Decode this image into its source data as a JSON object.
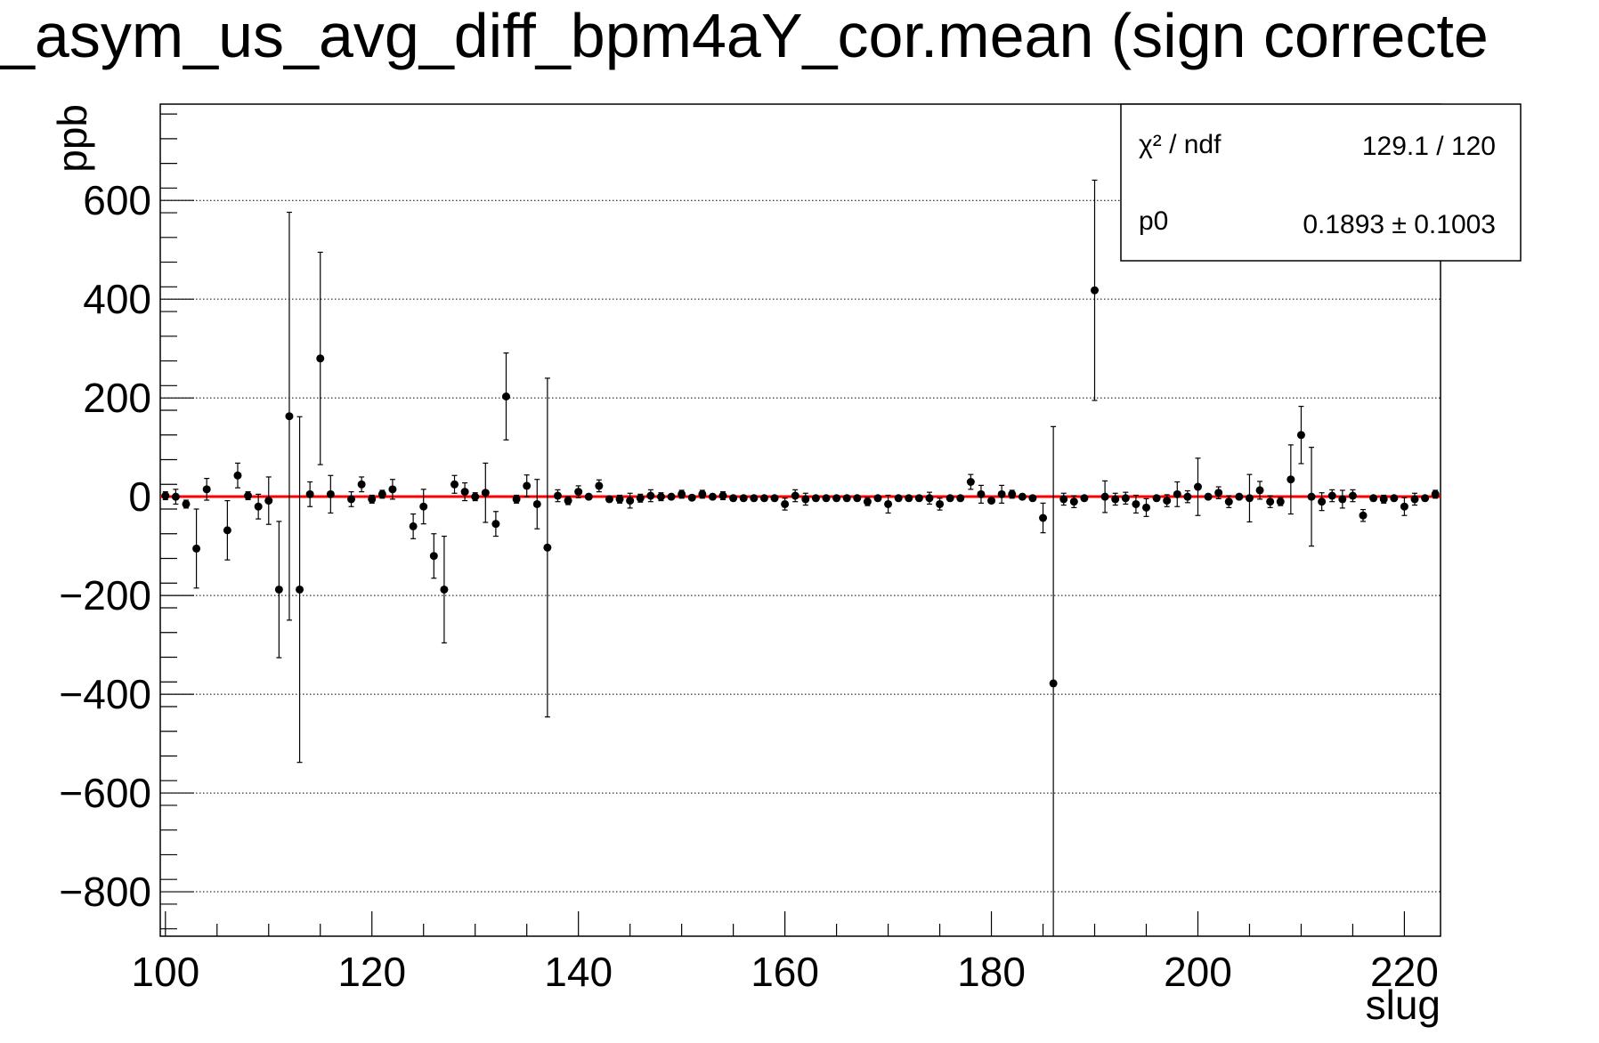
{
  "chart_data": {
    "type": "scatter",
    "title": "_asym_us_avg_diff_bpm4aY_cor.mean (sign correcte",
    "xlabel": "slug",
    "ylabel": "ppb",
    "xlim": [
      99.5,
      223.5
    ],
    "ylim": [
      -890,
      795
    ],
    "xticks": [
      100,
      120,
      140,
      160,
      180,
      200,
      220
    ],
    "yticks": [
      -800,
      -600,
      -400,
      -200,
      0,
      200,
      400,
      600
    ],
    "grid": "horizontal dotted",
    "fit": {
      "name": "pol0",
      "value": 0.1893,
      "color": "#ff0000"
    },
    "stats": {
      "chi2_label": "χ² / ndf",
      "chi2_value": "129.1 / 120",
      "p0_label": "p0",
      "p0_value": "0.1893 ± 0.1003",
      "placement": "top-right"
    },
    "marker_color": "#000000",
    "points": [
      {
        "x": 100,
        "y": 2,
        "err": 8
      },
      {
        "x": 101,
        "y": 0,
        "err": 15
      },
      {
        "x": 102,
        "y": -15,
        "err": 8
      },
      {
        "x": 103,
        "y": -105,
        "err": 80
      },
      {
        "x": 104,
        "y": 15,
        "err": 22
      },
      {
        "x": 106,
        "y": -68,
        "err": 60
      },
      {
        "x": 107,
        "y": 43,
        "err": 25
      },
      {
        "x": 108,
        "y": 2,
        "err": 8
      },
      {
        "x": 109,
        "y": -20,
        "err": 25
      },
      {
        "x": 110,
        "y": -8,
        "err": 48
      },
      {
        "x": 111,
        "y": -188,
        "err": 138
      },
      {
        "x": 112,
        "y": 163,
        "err": 413
      },
      {
        "x": 113,
        "y": -188,
        "err": 350
      },
      {
        "x": 114,
        "y": 5,
        "err": 25
      },
      {
        "x": 115,
        "y": 280,
        "err": 215
      },
      {
        "x": 116,
        "y": 5,
        "err": 38
      },
      {
        "x": 118,
        "y": -5,
        "err": 15
      },
      {
        "x": 119,
        "y": 25,
        "err": 15
      },
      {
        "x": 120,
        "y": -5,
        "err": 8
      },
      {
        "x": 121,
        "y": 5,
        "err": 8
      },
      {
        "x": 122,
        "y": 15,
        "err": 20
      },
      {
        "x": 124,
        "y": -60,
        "err": 25
      },
      {
        "x": 125,
        "y": -20,
        "err": 35
      },
      {
        "x": 126,
        "y": -120,
        "err": 45
      },
      {
        "x": 127,
        "y": -188,
        "err": 108
      },
      {
        "x": 128,
        "y": 25,
        "err": 18
      },
      {
        "x": 129,
        "y": 10,
        "err": 18
      },
      {
        "x": 130,
        "y": 0,
        "err": 8
      },
      {
        "x": 131,
        "y": 8,
        "err": 60
      },
      {
        "x": 132,
        "y": -55,
        "err": 25
      },
      {
        "x": 133,
        "y": 203,
        "err": 88
      },
      {
        "x": 134,
        "y": -5,
        "err": 8
      },
      {
        "x": 135,
        "y": 22,
        "err": 22
      },
      {
        "x": 136,
        "y": -15,
        "err": 50
      },
      {
        "x": 137,
        "y": -103,
        "err": 343
      },
      {
        "x": 138,
        "y": 2,
        "err": 12
      },
      {
        "x": 139,
        "y": -8,
        "err": 8
      },
      {
        "x": 140,
        "y": 10,
        "err": 12
      },
      {
        "x": 141,
        "y": 0,
        "err": 5
      },
      {
        "x": 142,
        "y": 22,
        "err": 12
      },
      {
        "x": 143,
        "y": -5,
        "err": 5
      },
      {
        "x": 144,
        "y": -5,
        "err": 8
      },
      {
        "x": 145,
        "y": -8,
        "err": 15
      },
      {
        "x": 146,
        "y": -3,
        "err": 8
      },
      {
        "x": 147,
        "y": 2,
        "err": 12
      },
      {
        "x": 148,
        "y": 0,
        "err": 8
      },
      {
        "x": 149,
        "y": 0,
        "err": 5
      },
      {
        "x": 150,
        "y": 5,
        "err": 8
      },
      {
        "x": 151,
        "y": -2,
        "err": 5
      },
      {
        "x": 152,
        "y": 5,
        "err": 8
      },
      {
        "x": 153,
        "y": 0,
        "err": 5
      },
      {
        "x": 154,
        "y": 2,
        "err": 8
      },
      {
        "x": 155,
        "y": -3,
        "err": 5
      },
      {
        "x": 156,
        "y": -3,
        "err": 5
      },
      {
        "x": 157,
        "y": -3,
        "err": 5
      },
      {
        "x": 158,
        "y": -3,
        "err": 5
      },
      {
        "x": 159,
        "y": -3,
        "err": 5
      },
      {
        "x": 160,
        "y": -15,
        "err": 12
      },
      {
        "x": 161,
        "y": 2,
        "err": 12
      },
      {
        "x": 162,
        "y": -5,
        "err": 12
      },
      {
        "x": 163,
        "y": -3,
        "err": 5
      },
      {
        "x": 164,
        "y": -3,
        "err": 5
      },
      {
        "x": 165,
        "y": -3,
        "err": 5
      },
      {
        "x": 166,
        "y": -3,
        "err": 5
      },
      {
        "x": 167,
        "y": -3,
        "err": 5
      },
      {
        "x": 168,
        "y": -10,
        "err": 8
      },
      {
        "x": 169,
        "y": -3,
        "err": 5
      },
      {
        "x": 170,
        "y": -15,
        "err": 18
      },
      {
        "x": 171,
        "y": -3,
        "err": 5
      },
      {
        "x": 172,
        "y": -3,
        "err": 5
      },
      {
        "x": 173,
        "y": -3,
        "err": 5
      },
      {
        "x": 174,
        "y": -3,
        "err": 12
      },
      {
        "x": 175,
        "y": -15,
        "err": 12
      },
      {
        "x": 176,
        "y": -3,
        "err": 5
      },
      {
        "x": 177,
        "y": -3,
        "err": 5
      },
      {
        "x": 178,
        "y": 30,
        "err": 15
      },
      {
        "x": 179,
        "y": 5,
        "err": 18
      },
      {
        "x": 180,
        "y": -8,
        "err": 5
      },
      {
        "x": 181,
        "y": 5,
        "err": 18
      },
      {
        "x": 182,
        "y": 5,
        "err": 8
      },
      {
        "x": 183,
        "y": 0,
        "err": 5
      },
      {
        "x": 184,
        "y": -3,
        "err": 5
      },
      {
        "x": 185,
        "y": -43,
        "err": 30
      },
      {
        "x": 186,
        "y": -378,
        "err": 520
      },
      {
        "x": 187,
        "y": -5,
        "err": 12
      },
      {
        "x": 188,
        "y": -10,
        "err": 12
      },
      {
        "x": 189,
        "y": -3,
        "err": 5
      },
      {
        "x": 190,
        "y": 418,
        "err": 223
      },
      {
        "x": 191,
        "y": 0,
        "err": 32
      },
      {
        "x": 192,
        "y": -5,
        "err": 12
      },
      {
        "x": 193,
        "y": -3,
        "err": 12
      },
      {
        "x": 194,
        "y": -15,
        "err": 18
      },
      {
        "x": 195,
        "y": -22,
        "err": 18
      },
      {
        "x": 196,
        "y": -3,
        "err": 5
      },
      {
        "x": 197,
        "y": -8,
        "err": 12
      },
      {
        "x": 198,
        "y": 5,
        "err": 25
      },
      {
        "x": 199,
        "y": 0,
        "err": 12
      },
      {
        "x": 200,
        "y": 20,
        "err": 58
      },
      {
        "x": 201,
        "y": 0,
        "err": 5
      },
      {
        "x": 202,
        "y": 8,
        "err": 12
      },
      {
        "x": 203,
        "y": -10,
        "err": 12
      },
      {
        "x": 204,
        "y": 0,
        "err": 5
      },
      {
        "x": 205,
        "y": -3,
        "err": 48
      },
      {
        "x": 206,
        "y": 13,
        "err": 18
      },
      {
        "x": 207,
        "y": -10,
        "err": 12
      },
      {
        "x": 208,
        "y": -10,
        "err": 8
      },
      {
        "x": 209,
        "y": 35,
        "err": 70
      },
      {
        "x": 210,
        "y": 125,
        "err": 58
      },
      {
        "x": 211,
        "y": 0,
        "err": 100
      },
      {
        "x": 212,
        "y": -10,
        "err": 18
      },
      {
        "x": 213,
        "y": 2,
        "err": 12
      },
      {
        "x": 214,
        "y": -5,
        "err": 18
      },
      {
        "x": 215,
        "y": 2,
        "err": 12
      },
      {
        "x": 216,
        "y": -38,
        "err": 12
      },
      {
        "x": 217,
        "y": -3,
        "err": 5
      },
      {
        "x": 218,
        "y": -5,
        "err": 8
      },
      {
        "x": 219,
        "y": -3,
        "err": 5
      },
      {
        "x": 220,
        "y": -20,
        "err": 18
      },
      {
        "x": 221,
        "y": -5,
        "err": 12
      },
      {
        "x": 222,
        "y": -3,
        "err": 5
      },
      {
        "x": 223,
        "y": 5,
        "err": 8
      }
    ]
  }
}
